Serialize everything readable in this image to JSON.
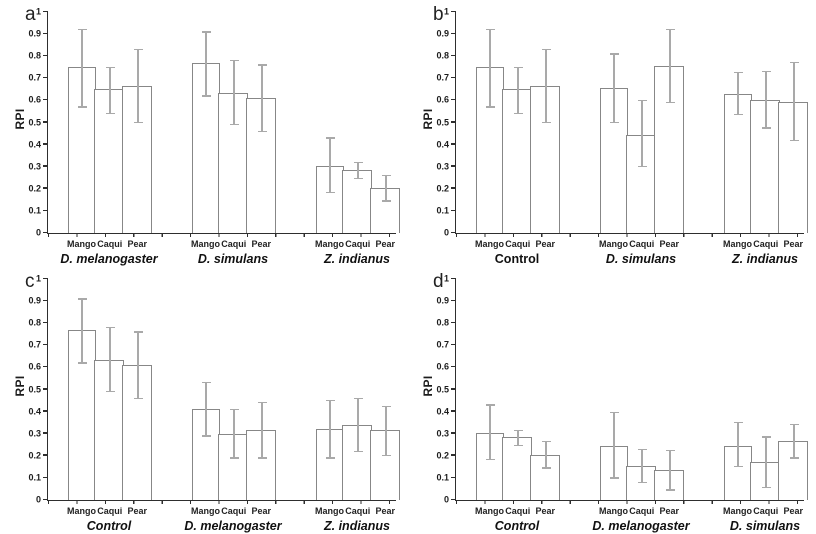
{
  "figure": {
    "background": "#ffffff"
  },
  "colors": {
    "axis": "#2e2e2e",
    "bar_outline": "#878787",
    "error_bar": "#a9a9a9",
    "text": "#1c1c1c"
  },
  "y_axis": {
    "label": "RPI",
    "range": [
      0,
      1
    ],
    "ticks_top_to_bottom": [
      "1",
      "0.9",
      "0.8",
      "0.7",
      "0.6",
      "0.5",
      "0.4",
      "0.3",
      "0.2",
      "0.1",
      "0"
    ]
  },
  "categories": [
    "Mango",
    "Caqui",
    "Pear"
  ],
  "chart_data": [
    {
      "type": "bar",
      "panel_label": "a",
      "ylabel": "RPI",
      "ylim": [
        0,
        1
      ],
      "grid": false,
      "error_bars": true,
      "categories": [
        "Mango",
        "Caqui",
        "Pear"
      ],
      "groups": [
        {
          "label": "D. melanogaster",
          "italic": true,
          "values": [
            0.75,
            0.65,
            0.665
          ],
          "err_low": [
            0.57,
            0.54,
            0.5
          ],
          "err_high": [
            0.92,
            0.75,
            0.83
          ]
        },
        {
          "label": "D. simulans",
          "italic": true,
          "values": [
            0.77,
            0.635,
            0.61
          ],
          "err_low": [
            0.62,
            0.49,
            0.46
          ],
          "err_high": [
            0.91,
            0.78,
            0.76
          ]
        },
        {
          "label": "Z. indianus",
          "italic": true,
          "values": [
            0.305,
            0.285,
            0.205
          ],
          "err_low": [
            0.185,
            0.245,
            0.145
          ],
          "err_high": [
            0.43,
            0.32,
            0.26
          ]
        }
      ]
    },
    {
      "type": "bar",
      "panel_label": "b",
      "ylabel": "RPI",
      "ylim": [
        0,
        1
      ],
      "grid": false,
      "error_bars": true,
      "categories": [
        "Mango",
        "Caqui",
        "Pear"
      ],
      "groups": [
        {
          "label": "Control",
          "italic": false,
          "values": [
            0.75,
            0.65,
            0.665
          ],
          "err_low": [
            0.57,
            0.54,
            0.5
          ],
          "err_high": [
            0.92,
            0.75,
            0.83
          ]
        },
        {
          "label": "D. simulans",
          "italic": true,
          "values": [
            0.655,
            0.445,
            0.755
          ],
          "err_low": [
            0.5,
            0.3,
            0.59
          ],
          "err_high": [
            0.81,
            0.6,
            0.92
          ]
        },
        {
          "label": "Z. indianus",
          "italic": true,
          "values": [
            0.63,
            0.6,
            0.595
          ],
          "err_low": [
            0.535,
            0.475,
            0.42
          ],
          "err_high": [
            0.725,
            0.73,
            0.77
          ]
        }
      ]
    },
    {
      "type": "bar",
      "panel_label": "c",
      "ylabel": "RPI",
      "ylim": [
        0,
        1
      ],
      "grid": false,
      "error_bars": true,
      "categories": [
        "Mango",
        "Caqui",
        "Pear"
      ],
      "groups": [
        {
          "label": "Control",
          "italic": true,
          "values": [
            0.77,
            0.635,
            0.61
          ],
          "err_low": [
            0.62,
            0.49,
            0.46
          ],
          "err_high": [
            0.91,
            0.78,
            0.76
          ]
        },
        {
          "label": "D. melanogaster",
          "italic": true,
          "values": [
            0.41,
            0.3,
            0.315
          ],
          "err_low": [
            0.29,
            0.19,
            0.19
          ],
          "err_high": [
            0.53,
            0.41,
            0.44
          ]
        },
        {
          "label": "Z. indianus",
          "italic": true,
          "values": [
            0.32,
            0.34,
            0.315
          ],
          "err_low": [
            0.19,
            0.22,
            0.2
          ],
          "err_high": [
            0.45,
            0.46,
            0.425
          ]
        }
      ]
    },
    {
      "type": "bar",
      "panel_label": "d",
      "ylabel": "RPI",
      "ylim": [
        0,
        1
      ],
      "grid": false,
      "error_bars": true,
      "categories": [
        "Mango",
        "Caqui",
        "Pear"
      ],
      "groups": [
        {
          "label": "Control",
          "italic": true,
          "values": [
            0.305,
            0.285,
            0.205
          ],
          "err_low": [
            0.185,
            0.245,
            0.145
          ],
          "err_high": [
            0.43,
            0.315,
            0.265
          ]
        },
        {
          "label": "D. melanogaster",
          "italic": true,
          "values": [
            0.245,
            0.155,
            0.135
          ],
          "err_low": [
            0.1,
            0.08,
            0.045
          ],
          "err_high": [
            0.395,
            0.23,
            0.225
          ]
        },
        {
          "label": "D. simulans",
          "italic": true,
          "values": [
            0.245,
            0.17,
            0.265
          ],
          "err_low": [
            0.15,
            0.055,
            0.19
          ],
          "err_high": [
            0.35,
            0.285,
            0.34
          ]
        }
      ]
    }
  ]
}
